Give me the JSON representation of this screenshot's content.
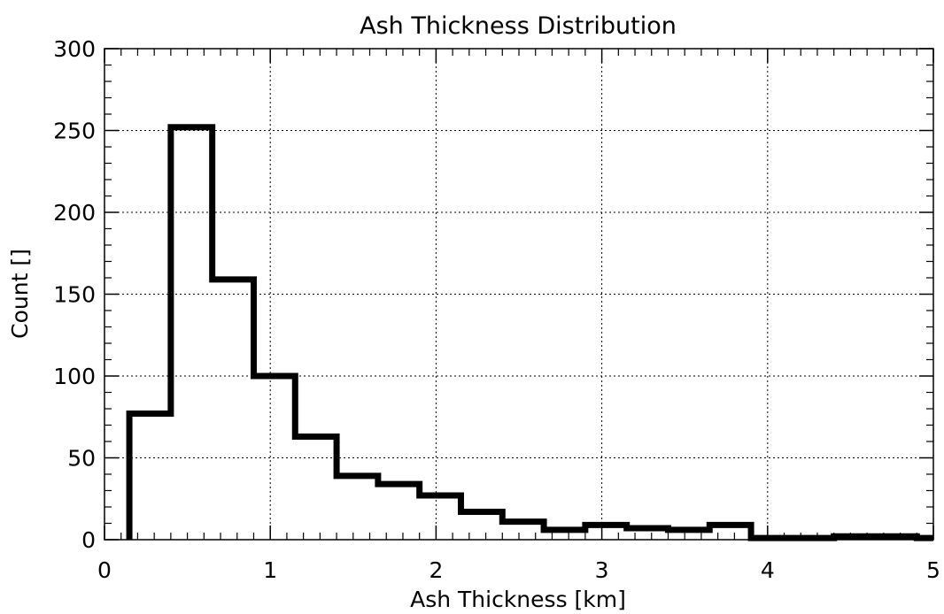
{
  "chart_data": {
    "type": "bar",
    "title": "Ash Thickness Distribution",
    "xlabel": "Ash Thickness [km]",
    "ylabel": "Count []",
    "xlim": [
      0,
      5
    ],
    "ylim": [
      0,
      300
    ],
    "xticks": [
      0,
      1,
      2,
      3,
      4,
      5
    ],
    "yticks": [
      0,
      50,
      100,
      150,
      200,
      250,
      300
    ],
    "grid": true,
    "bin_edges": [
      0.15,
      0.4,
      0.65,
      0.9,
      1.15,
      1.4,
      1.65,
      1.9,
      2.15,
      2.4,
      2.65,
      2.9,
      3.15,
      3.4,
      3.65,
      3.9,
      4.15,
      4.4,
      4.65,
      4.9,
      5.0
    ],
    "values": [
      77,
      252,
      159,
      100,
      63,
      39,
      34,
      27,
      17,
      11,
      6,
      9,
      7,
      6,
      9,
      1,
      1,
      2,
      2,
      1
    ]
  }
}
